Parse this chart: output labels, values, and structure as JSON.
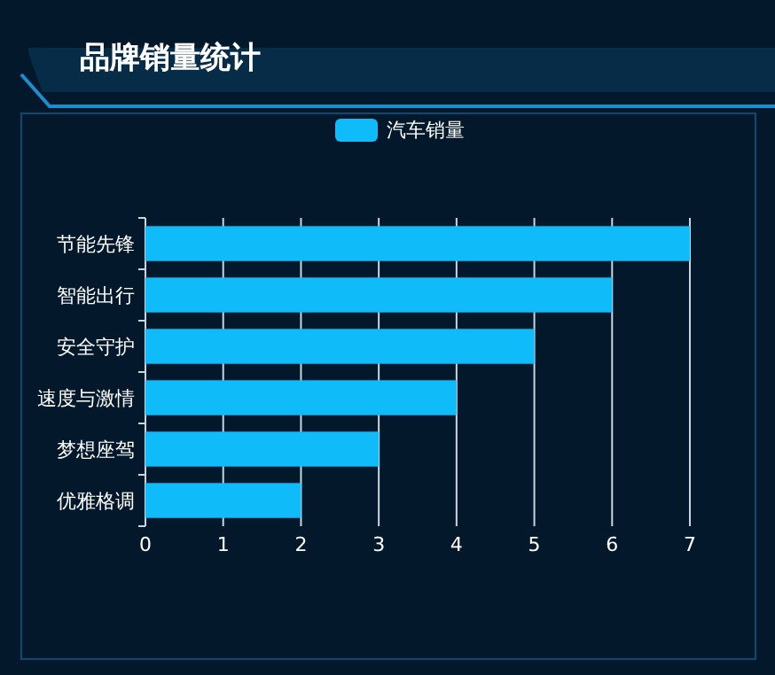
{
  "chart_data": {
    "type": "bar",
    "orientation": "horizontal",
    "title": "品牌销量统计",
    "categories": [
      "节能先锋",
      "智能出行",
      "安全守护",
      "速度与激情",
      "梦想座驾",
      "优雅格调"
    ],
    "series": [
      {
        "name": "汽车销量",
        "color": "#0fbcf9",
        "values": [
          7,
          6,
          5,
          4,
          3,
          2
        ]
      }
    ],
    "xlim": [
      0,
      7
    ],
    "xticks": [
      0,
      1,
      2,
      3,
      4,
      5,
      6,
      7
    ],
    "grid": "x",
    "legend": "top"
  }
}
